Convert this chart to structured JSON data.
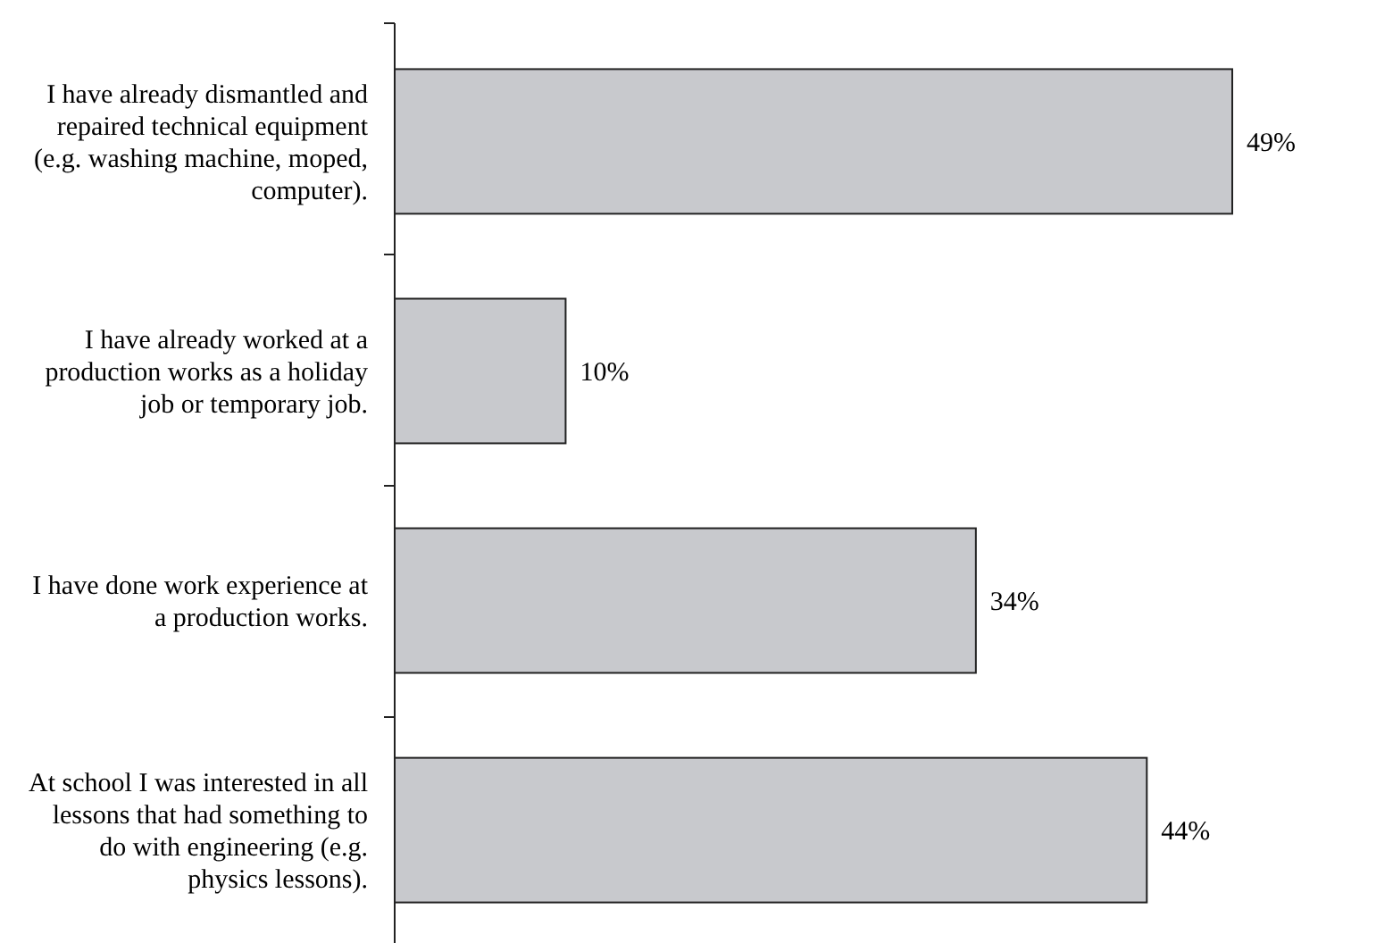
{
  "chart_data": {
    "type": "bar",
    "orientation": "horizontal",
    "categories": [
      "I have already dismantled and repaired technical equipment (e.g. washing machine, moped, computer).",
      "I have already worked at a production works as a holiday job or temporary job.",
      "I have done work experience at a production works.",
      "At school I was interested in all lessons that had something to do with engineering (e.g. physics lessons)."
    ],
    "values": [
      49,
      10,
      34,
      44
    ],
    "value_labels": [
      "49%",
      "10%",
      "34%",
      "44%"
    ],
    "color": "#c8c9cd"
  }
}
